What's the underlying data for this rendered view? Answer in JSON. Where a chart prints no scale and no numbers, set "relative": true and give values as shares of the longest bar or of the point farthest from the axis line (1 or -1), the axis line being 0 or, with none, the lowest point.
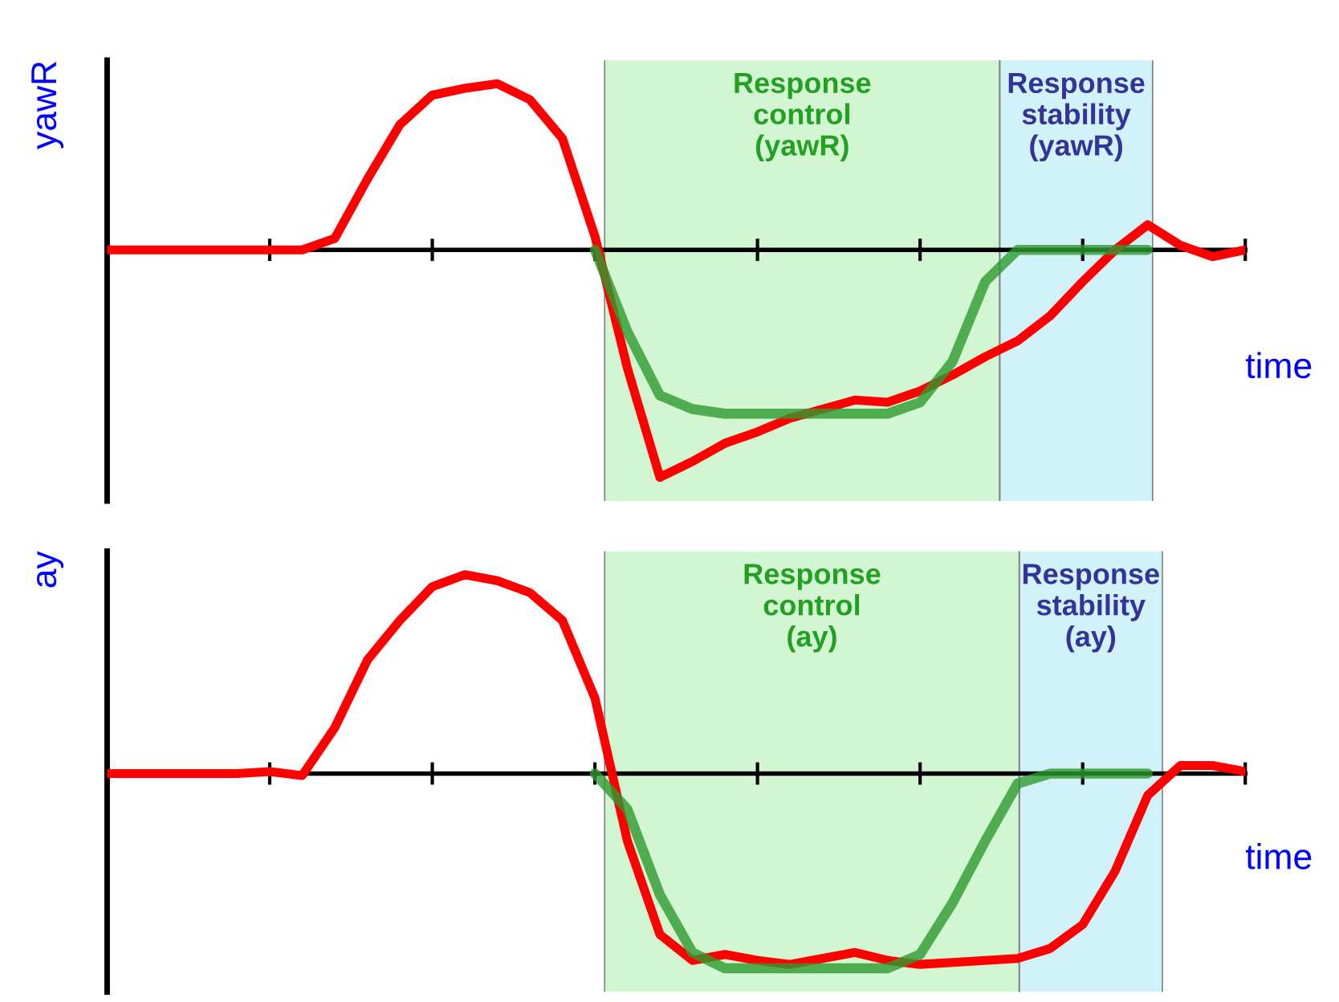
{
  "chart_data": [
    {
      "type": "line",
      "relative": true,
      "ylabel": "yawR",
      "xlabel": "time",
      "categories": [
        null,
        null,
        null,
        null,
        null,
        null,
        null,
        null,
        null,
        null,
        null,
        null,
        null,
        null,
        null,
        null,
        null,
        null,
        null,
        null,
        null,
        null,
        null,
        null,
        null,
        null,
        null,
        null,
        null,
        null,
        null,
        null,
        null,
        null,
        null,
        null
      ],
      "grid": false,
      "legend": false,
      "line_style": "solid",
      "marker": "none",
      "annotations": [
        "Response\ncontrol\n(yawR)",
        "Response\nstability\n(yawR)"
      ],
      "series": [
        {
          "color": "#ff0000",
          "values": [
            0,
            0,
            0,
            0,
            0,
            0,
            0,
            0.05,
            0.31,
            0.55,
            0.68,
            0.71,
            0.73,
            0.66,
            0.49,
            0.06,
            -0.52,
            -1.0,
            -0.93,
            -0.85,
            -0.8,
            -0.74,
            -0.7,
            -0.66,
            -0.67,
            -0.62,
            -0.55,
            -0.47,
            -0.4,
            -0.29,
            -0.14,
            0,
            0.11,
            0.02,
            -0.03,
            0
          ]
        },
        {
          "color": "#2e9a2e",
          "values": [
            null,
            null,
            null,
            null,
            null,
            null,
            null,
            null,
            null,
            null,
            null,
            null,
            null,
            null,
            null,
            0,
            -0.36,
            -0.64,
            -0.7,
            -0.72,
            -0.72,
            -0.72,
            -0.72,
            -0.72,
            -0.72,
            -0.67,
            -0.49,
            -0.14,
            0,
            0,
            0,
            0,
            0,
            null,
            null,
            null
          ]
        }
      ]
    },
    {
      "type": "line",
      "relative": true,
      "ylabel": "ay",
      "xlabel": "time",
      "categories": [
        null,
        null,
        null,
        null,
        null,
        null,
        null,
        null,
        null,
        null,
        null,
        null,
        null,
        null,
        null,
        null,
        null,
        null,
        null,
        null,
        null,
        null,
        null,
        null,
        null,
        null,
        null,
        null,
        null,
        null,
        null,
        null,
        null,
        null,
        null,
        null
      ],
      "grid": false,
      "legend": false,
      "line_style": "solid",
      "marker": "none",
      "annotations": [
        "Response\ncontrol\n(ay)",
        "Response\nstability\n(ay)"
      ],
      "series": [
        {
          "color": "#ff0000",
          "values": [
            0,
            0,
            0,
            0,
            0,
            0.01,
            -0.01,
            0.23,
            0.57,
            0.77,
            0.94,
            1.0,
            0.97,
            0.91,
            0.77,
            0.38,
            -0.34,
            -0.81,
            -0.94,
            -0.91,
            -0.94,
            -0.96,
            -0.93,
            -0.9,
            -0.94,
            -0.96,
            -0.95,
            -0.94,
            -0.93,
            -0.88,
            -0.76,
            -0.49,
            -0.11,
            0.04,
            0.04,
            0.01
          ]
        },
        {
          "color": "#2e9a2e",
          "values": [
            null,
            null,
            null,
            null,
            null,
            null,
            null,
            null,
            null,
            null,
            null,
            null,
            null,
            null,
            null,
            0,
            -0.18,
            -0.61,
            -0.9,
            -0.98,
            -0.98,
            -0.98,
            -0.98,
            -0.98,
            -0.98,
            -0.91,
            -0.65,
            -0.34,
            -0.05,
            0,
            0,
            0,
            0,
            null,
            null,
            null
          ]
        }
      ]
    }
  ]
}
